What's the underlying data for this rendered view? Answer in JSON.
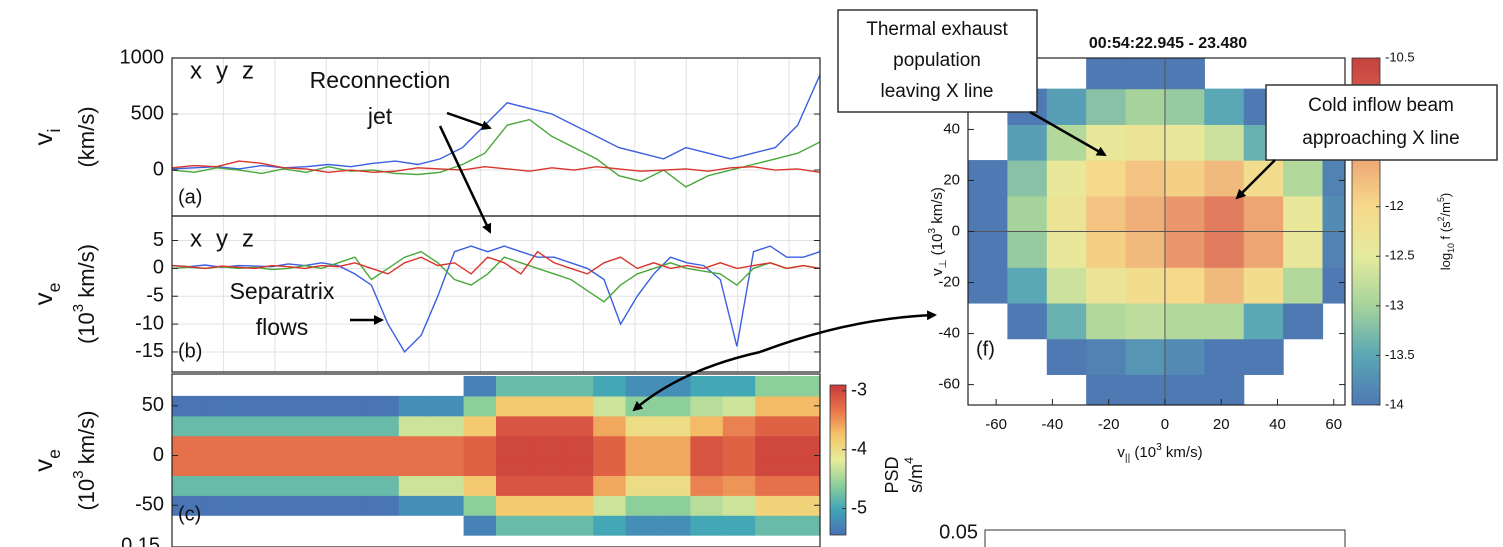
{
  "chart_data": [
    {
      "type": "line",
      "panel_label": "(a)",
      "ylabel": [
        [
          {
            "text": "v"
          },
          {
            "text": "i",
            "shift": "sub"
          }
        ],
        [
          {
            "text": "(km/s)"
          }
        ]
      ],
      "ylim": [
        -410,
        1000
      ],
      "yticks": [
        0,
        500,
        1000
      ],
      "grid": true,
      "annotations": [
        [
          "Reconnection",
          "jet"
        ]
      ],
      "series": [
        {
          "name": "x",
          "color": "#3b5fe0",
          "values": [
            10,
            20,
            30,
            10,
            40,
            20,
            30,
            50,
            30,
            60,
            80,
            50,
            100,
            200,
            400,
            600,
            550,
            500,
            400,
            300,
            200,
            150,
            100,
            200,
            150,
            100,
            150,
            200,
            400,
            850
          ]
        },
        {
          "name": "y",
          "color": "#4aa83a",
          "values": [
            0,
            -20,
            20,
            0,
            -30,
            10,
            -20,
            30,
            -10,
            0,
            -30,
            -40,
            -20,
            50,
            150,
            400,
            450,
            300,
            200,
            100,
            -50,
            -100,
            0,
            -150,
            -50,
            0,
            50,
            100,
            150,
            250
          ]
        },
        {
          "name": "z",
          "color": "#d9342b",
          "values": [
            20,
            40,
            30,
            80,
            60,
            20,
            10,
            -20,
            0,
            -20,
            -10,
            20,
            10,
            0,
            30,
            10,
            -10,
            20,
            0,
            30,
            10,
            -10,
            0,
            10,
            -10,
            20,
            30,
            0,
            10,
            -20
          ]
        }
      ]
    },
    {
      "type": "line",
      "panel_label": "(b)",
      "ylabel": [
        [
          {
            "text": "v"
          },
          {
            "text": "e",
            "shift": "sub"
          }
        ],
        [
          {
            "text": "(10"
          },
          {
            "text": "3",
            "shift": "super"
          },
          {
            "text": " km/s)"
          }
        ]
      ],
      "ylim": [
        -18.6,
        9.4
      ],
      "yticks": [
        -15,
        -10,
        -5,
        0,
        5
      ],
      "grid": true,
      "annotations": [
        [
          "Separatrix",
          "flows"
        ]
      ],
      "series": [
        {
          "name": "x",
          "color": "#3b5fe0",
          "values": [
            0.5,
            0.3,
            0.6,
            0.2,
            0.5,
            0.4,
            0.3,
            0.8,
            0.5,
            1,
            0.5,
            -1,
            -3,
            -10,
            -15,
            -12,
            -5,
            3,
            4,
            3,
            4,
            3,
            2,
            2,
            1,
            0,
            -2,
            -10,
            -5,
            -1,
            2,
            1,
            0.5,
            -2,
            -14,
            3,
            4,
            2,
            2,
            3
          ]
        },
        {
          "name": "y",
          "color": "#4aa83a",
          "values": [
            0,
            0.2,
            0,
            0.3,
            0,
            0.2,
            -0.2,
            0,
            0.5,
            0,
            1,
            2,
            -2,
            0,
            2,
            3,
            1,
            -2,
            -3,
            -1,
            2,
            1,
            0,
            -1,
            -2,
            -4,
            -6,
            -3,
            -1,
            0,
            1,
            0,
            -0.5,
            -1,
            -3,
            0,
            1,
            0,
            0.5,
            0
          ]
        },
        {
          "name": "z",
          "color": "#d9342b",
          "values": [
            0.5,
            0.3,
            0,
            0.4,
            0.2,
            0,
            0.5,
            0.3,
            0,
            0.5,
            0.3,
            1,
            0,
            -1,
            1,
            2,
            0.5,
            1,
            -1,
            2,
            1,
            -1,
            3,
            1,
            0,
            -1,
            1,
            2,
            0,
            1,
            0,
            0.5,
            0,
            1,
            0,
            0.5,
            1,
            0,
            0.5,
            0
          ]
        }
      ]
    },
    {
      "type": "heatmap",
      "panel_label": "(c)",
      "ylabel": [
        [
          {
            "text": "v"
          },
          {
            "text": "e",
            "shift": "sub"
          }
        ],
        [
          {
            "text": "(10"
          },
          {
            "text": "3",
            "shift": "super"
          },
          {
            "text": " km/s)"
          }
        ]
      ],
      "ylim": [
        -92,
        82
      ],
      "yticks": [
        -50,
        0,
        50
      ],
      "ybins": [
        -80,
        -60,
        -40,
        -20,
        0,
        20,
        40,
        60,
        80
      ],
      "z": [
        [
          null,
          null,
          null,
          null,
          null,
          null,
          null,
          null,
          null,
          -5.3,
          -4.8,
          -4.8,
          -4.8,
          -5.0,
          -5.2,
          -5.2,
          -5.0,
          -5.0,
          -4.8,
          -4.8
        ],
        [
          -5.4,
          -5.4,
          -5.4,
          -5.4,
          -5.4,
          -5.4,
          -5.4,
          -5.2,
          -5.2,
          -4.6,
          -3.8,
          -3.8,
          -3.8,
          -4.3,
          -4.6,
          -4.6,
          -4.4,
          -4.3,
          -3.9,
          -3.9
        ],
        [
          -4.8,
          -4.8,
          -4.8,
          -4.8,
          -4.8,
          -4.8,
          -4.8,
          -4.3,
          -4.3,
          -3.8,
          -3.1,
          -3.1,
          -3.1,
          -3.6,
          -4.0,
          -4.0,
          -3.4,
          -3.5,
          -3.3,
          -3.3
        ],
        [
          -3.3,
          -3.3,
          -3.3,
          -3.3,
          -3.3,
          -3.3,
          -3.3,
          -3.3,
          -3.3,
          -3.2,
          -3.0,
          -3.0,
          -3.0,
          -3.2,
          -3.6,
          -3.6,
          -3.1,
          -3.2,
          -3.0,
          -3.0
        ],
        [
          -3.3,
          -3.3,
          -3.3,
          -3.3,
          -3.3,
          -3.3,
          -3.3,
          -3.3,
          -3.3,
          -3.2,
          -3.0,
          -3.0,
          -3.0,
          -3.2,
          -3.6,
          -3.6,
          -3.1,
          -3.2,
          -3.0,
          -3.0
        ],
        [
          -4.8,
          -4.8,
          -4.8,
          -4.8,
          -4.8,
          -4.8,
          -4.8,
          -4.3,
          -4.3,
          -3.8,
          -3.1,
          -3.1,
          -3.1,
          -3.6,
          -4.0,
          -4.0,
          -3.7,
          -3.4,
          -3.2,
          -3.2
        ],
        [
          -5.4,
          -5.4,
          -5.4,
          -5.4,
          -5.4,
          -5.4,
          -5.4,
          -5.2,
          -5.2,
          -4.6,
          -3.8,
          -3.8,
          -3.8,
          -4.3,
          -4.6,
          -4.6,
          -4.4,
          -4.3,
          -3.7,
          -3.7
        ],
        [
          null,
          null,
          null,
          null,
          null,
          null,
          null,
          null,
          null,
          -5.3,
          -4.8,
          -4.8,
          -4.8,
          -5.0,
          -5.2,
          -5.2,
          -5.0,
          -5.0,
          -4.6,
          -4.6
        ]
      ],
      "clim": [
        -5.45,
        -2.9
      ],
      "cticks": [
        -5,
        -4,
        -3
      ],
      "colormap": [
        "#4a6fb5",
        "#3fa4b8",
        "#8dcf9a",
        "#e8ec9a",
        "#f5c56a",
        "#e8734a",
        "#c83a3a"
      ],
      "colorbar_label": [
        [
          {
            "text": "PSD"
          }
        ],
        [
          {
            "text": "s/m"
          },
          {
            "text": "4",
            "shift": "super"
          }
        ]
      ]
    },
    {
      "type": "heatmap",
      "panel_label": "(f)",
      "title": "00:54:22.945 - 23.480",
      "xlabel": [
        {
          "text": "v"
        },
        {
          "text": "||",
          "shift": "sub"
        },
        {
          "text": " (10"
        },
        {
          "text": "3",
          "shift": "super"
        },
        {
          "text": " km/s)"
        }
      ],
      "ylabel": [
        [
          {
            "text": "v"
          },
          {
            "text": "⊥",
            "shift": "sub"
          },
          {
            "text": " (10"
          },
          {
            "text": "3",
            "shift": "super"
          },
          {
            "text": " km/s)"
          }
        ]
      ],
      "xlim": [
        -70,
        64
      ],
      "xticks": [
        -60,
        -40,
        -20,
        0,
        20,
        40,
        60
      ],
      "ylim": [
        -68,
        68
      ],
      "yticks": [
        -60,
        -40,
        -20,
        0,
        20,
        40
      ],
      "xbins": [
        -70,
        -56,
        -42,
        -28,
        -14,
        0,
        14,
        28,
        42,
        56,
        70
      ],
      "ybins": [
        -70,
        -56,
        -42,
        -28,
        -14,
        0,
        14,
        28,
        42,
        56,
        70
      ],
      "z": [
        [
          null,
          null,
          null,
          -14.1,
          -14.0,
          -14.0,
          -14.1,
          null,
          null,
          null
        ],
        [
          null,
          null,
          -14.3,
          -13.9,
          -13.7,
          -13.8,
          -14.2,
          -14.3,
          null,
          null
        ],
        [
          null,
          -14.1,
          -13.4,
          -12.9,
          -12.8,
          -12.9,
          -12.9,
          -13.5,
          -14.3,
          null
        ],
        [
          -14.4,
          -13.5,
          -12.7,
          -12.3,
          -12.1,
          -12.0,
          -11.7,
          -12.1,
          -12.9,
          -14.0
        ],
        [
          -14.1,
          -13.1,
          -12.4,
          -11.9,
          -11.7,
          -11.4,
          -11.2,
          -11.5,
          -12.4,
          -13.9
        ],
        [
          -14.0,
          -13.0,
          -12.3,
          -11.8,
          -11.6,
          -11.4,
          -11.2,
          -11.5,
          -12.4,
          -13.8
        ],
        [
          -14.2,
          -13.2,
          -12.4,
          -12.0,
          -11.8,
          -11.9,
          -11.7,
          -12.1,
          -12.9,
          -13.9
        ],
        [
          null,
          -13.6,
          -12.9,
          -12.4,
          -12.3,
          -12.4,
          -12.7,
          -13.4,
          -14.3,
          null
        ],
        [
          null,
          -14.4,
          -13.6,
          -13.2,
          -13.0,
          -13.1,
          -13.5,
          -14.1,
          null,
          null
        ],
        [
          null,
          null,
          null,
          -14.2,
          -14.0,
          -14.1,
          null,
          null,
          null,
          null
        ]
      ],
      "clim": [
        -14,
        -10.5
      ],
      "cticks": [
        -14,
        -13.5,
        -13,
        -12.5,
        -12,
        -10.5
      ],
      "colormap": [
        "#4f79b3",
        "#5aa7b5",
        "#a6d39b",
        "#e4eb9e",
        "#f6d98a",
        "#eea574",
        "#d9614f",
        "#c5423f"
      ],
      "colorbar_label": [
        [
          {
            "text": "log"
          },
          {
            "text": "10",
            "shift": "sub"
          },
          {
            "text": " f (s"
          },
          {
            "text": "2",
            "shift": "super"
          },
          {
            "text": "/m"
          },
          {
            "text": "5",
            "shift": "super"
          },
          {
            "text": ")"
          }
        ]
      ]
    }
  ],
  "callouts": [
    [
      "Thermal exhaust",
      "population",
      "leaving X line"
    ],
    [
      "Cold inflow beam",
      "approaching X line"
    ]
  ],
  "cut_off_tick_labels": [
    "0.15",
    "0.05"
  ]
}
